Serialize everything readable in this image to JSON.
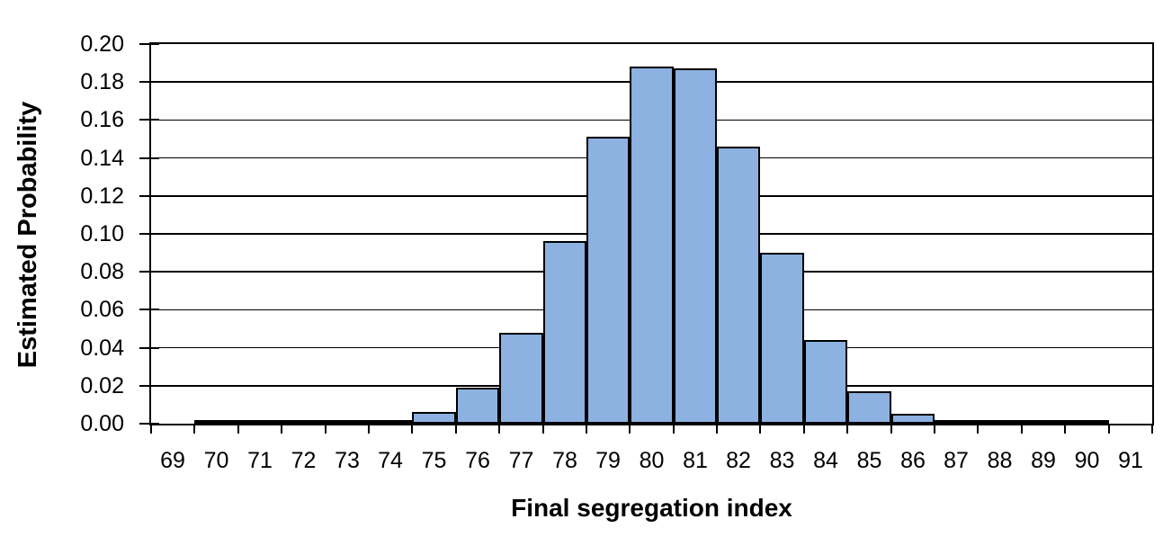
{
  "chart_data": {
    "type": "bar",
    "subtype": "histogram",
    "title": "",
    "xlabel": "Final segregation index",
    "ylabel": "Estimated Probability",
    "categories": [
      "69",
      "70",
      "71",
      "72",
      "73",
      "74",
      "75",
      "76",
      "77",
      "78",
      "79",
      "80",
      "81",
      "82",
      "83",
      "84",
      "85",
      "86",
      "87",
      "88",
      "89",
      "90",
      "91"
    ],
    "values": [
      0,
      0.0003,
      0.0003,
      0.0004,
      0.001,
      0.002,
      0.006,
      0.019,
      0.048,
      0.096,
      0.151,
      0.188,
      0.187,
      0.146,
      0.09,
      0.044,
      0.017,
      0.005,
      0.0015,
      0.0005,
      0.0005,
      0.0005,
      0
    ],
    "ylim": [
      0,
      0.2
    ],
    "y_ticks": [
      "0.00",
      "0.02",
      "0.04",
      "0.06",
      "0.08",
      "0.10",
      "0.12",
      "0.14",
      "0.16",
      "0.18",
      "0.20"
    ],
    "grid": "horizontal",
    "legend": "none",
    "bar_gap": 0,
    "colors": {
      "bar_fill": "#8DB1E0",
      "bar_border": "#000000",
      "axis": "#000000",
      "gridline": "#000000",
      "background": "#FFFFFF",
      "text": "#000000"
    }
  }
}
